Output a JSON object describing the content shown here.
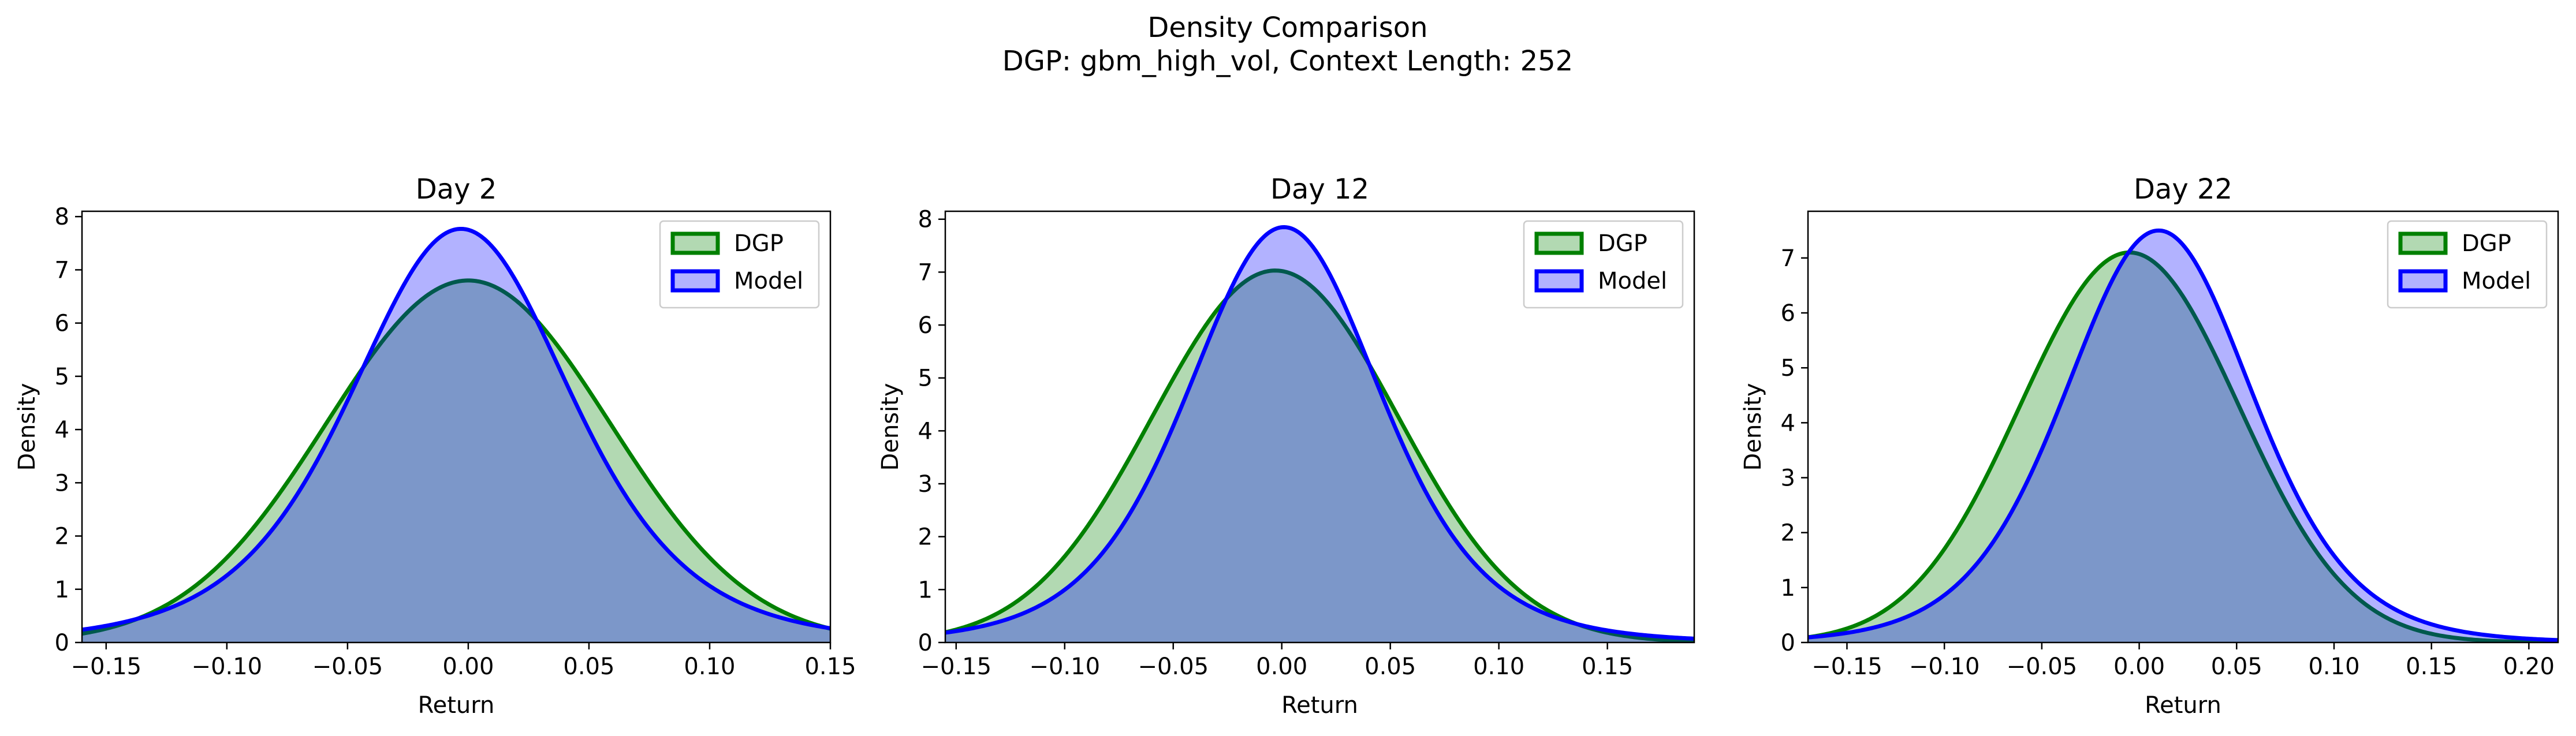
{
  "figure": {
    "title_line1": "Density Comparison",
    "title_line2": "DGP: gbm_high_vol, Context Length: 252"
  },
  "colors": {
    "dgp": "#008000",
    "model": "#0000ff",
    "dgp_fill": "#008000",
    "model_fill": "#0000ff"
  },
  "chart_data": [
    {
      "type": "area",
      "title": "Day 2",
      "xlabel": "Return",
      "ylabel": "Density",
      "xlim": [
        -0.16,
        0.15
      ],
      "ylim": [
        0,
        8.1
      ],
      "xticks": [
        -0.15,
        -0.1,
        -0.05,
        0.0,
        0.05,
        0.1,
        0.15
      ],
      "xtick_labels": [
        "−0.15",
        "−0.10",
        "−0.05",
        "0.00",
        "0.05",
        "0.10",
        "0.15"
      ],
      "yticks": [
        0,
        1,
        2,
        3,
        4,
        5,
        6,
        7,
        8
      ],
      "ytick_labels": [
        "0",
        "1",
        "2",
        "3",
        "4",
        "5",
        "6",
        "7",
        "8"
      ],
      "legend": {
        "position": "upper-right",
        "entries": [
          "DGP",
          "Model"
        ]
      },
      "series": [
        {
          "name": "DGP",
          "kind": "normal",
          "peak_x": 0.0,
          "peak_y": 6.8,
          "sigma": 0.0587
        },
        {
          "name": "Model",
          "kind": "student_t",
          "peak_x": -0.003,
          "peak_y": 7.77,
          "scale": 0.0475,
          "nu": 5
        }
      ]
    },
    {
      "type": "area",
      "title": "Day 12",
      "xlabel": "Return",
      "ylabel": "Density",
      "xlim": [
        -0.155,
        0.19
      ],
      "ylim": [
        0,
        8.15
      ],
      "xticks": [
        -0.15,
        -0.1,
        -0.05,
        0.0,
        0.05,
        0.1,
        0.15
      ],
      "xtick_labels": [
        "−0.15",
        "−0.10",
        "−0.05",
        "0.00",
        "0.05",
        "0.10",
        "0.15"
      ],
      "yticks": [
        0,
        1,
        2,
        3,
        4,
        5,
        6,
        7,
        8
      ],
      "ytick_labels": [
        "0",
        "1",
        "2",
        "3",
        "4",
        "5",
        "6",
        "7",
        "8"
      ],
      "legend": {
        "position": "upper-right",
        "entries": [
          "DGP",
          "Model"
        ]
      },
      "series": [
        {
          "name": "DGP",
          "kind": "normal",
          "peak_x": -0.003,
          "peak_y": 7.03,
          "sigma": 0.0567
        },
        {
          "name": "Model",
          "kind": "student_t",
          "peak_x": 0.001,
          "peak_y": 7.85,
          "scale": 0.046,
          "nu": 6
        }
      ]
    },
    {
      "type": "area",
      "title": "Day 22",
      "xlabel": "Return",
      "ylabel": "Density",
      "xlim": [
        -0.17,
        0.215
      ],
      "ylim": [
        0,
        7.85
      ],
      "xticks": [
        -0.15,
        -0.1,
        -0.05,
        0.0,
        0.05,
        0.1,
        0.15,
        0.2
      ],
      "xtick_labels": [
        "−0.15",
        "−0.10",
        "−0.05",
        "0.00",
        "0.05",
        "0.10",
        "0.15",
        "0.20"
      ],
      "yticks": [
        0,
        1,
        2,
        3,
        4,
        5,
        6,
        7
      ],
      "ytick_labels": [
        "0",
        "1",
        "2",
        "3",
        "4",
        "5",
        "6",
        "7"
      ],
      "legend": {
        "position": "upper-right",
        "entries": [
          "DGP",
          "Model"
        ]
      },
      "series": [
        {
          "name": "DGP",
          "kind": "normal",
          "peak_x": -0.005,
          "peak_y": 7.1,
          "sigma": 0.0562
        },
        {
          "name": "Model",
          "kind": "student_t",
          "peak_x": 0.01,
          "peak_y": 7.5,
          "scale": 0.0495,
          "nu": 8
        }
      ]
    }
  ]
}
